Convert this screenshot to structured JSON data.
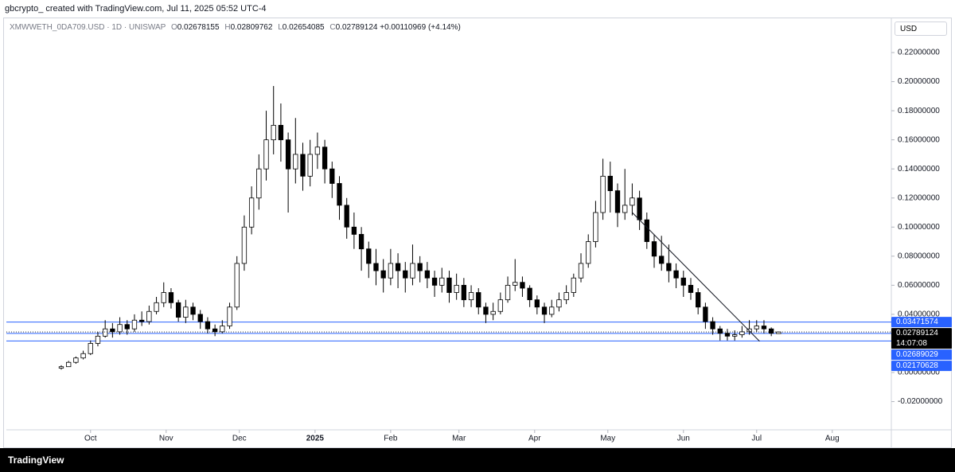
{
  "header": {
    "caption": "gbcrypto_ created with TradingView.com, Jul 11, 2025 05:52 UTC-4",
    "symbol": "XMWWETH_0DA709.USD · 1D · UNISWAP",
    "ohlc": [
      {
        "label": "O",
        "value": "0.02678155"
      },
      {
        "label": "H",
        "value": "0.02809762"
      },
      {
        "label": "L",
        "value": "0.02654085"
      },
      {
        "label": "C",
        "value": "0.02789124"
      }
    ],
    "change": "+0.00110969 (+4.14%)",
    "currency": "USD"
  },
  "footer": {
    "brand": "TradingView"
  },
  "chart_data": {
    "type": "candlestick",
    "up_color": "#ffffff",
    "down_color": "#000000",
    "wick_color": "#000000",
    "level_color": "#2962ff",
    "x": [
      0,
      1,
      2,
      3,
      4,
      5,
      6,
      7,
      8,
      9,
      10,
      11,
      12,
      13,
      14,
      15,
      16,
      17,
      18,
      19,
      20,
      21,
      22,
      23,
      24,
      25,
      26,
      27,
      28,
      29,
      30,
      31,
      32,
      33,
      34,
      35,
      36,
      37,
      38,
      39,
      40,
      41,
      42,
      43,
      44,
      45,
      46,
      47,
      48,
      49,
      50,
      51,
      52,
      53,
      54,
      55,
      56,
      57,
      58,
      59,
      60,
      61,
      62,
      63,
      64,
      65,
      66,
      67,
      68,
      69,
      70,
      71,
      72,
      73,
      74,
      75,
      76,
      77,
      78,
      79,
      80,
      81,
      82,
      83,
      84,
      85,
      86,
      87,
      88,
      89,
      90,
      91,
      92,
      93,
      94,
      95,
      96,
      97,
      98
    ],
    "open": [
      0.003,
      0.004,
      0.007,
      0.01,
      0.013,
      0.02,
      0.025,
      0.03,
      0.028,
      0.033,
      0.03,
      0.036,
      0.035,
      0.042,
      0.048,
      0.055,
      0.048,
      0.038,
      0.045,
      0.04,
      0.035,
      0.03,
      0.028,
      0.032,
      0.045,
      0.075,
      0.1,
      0.12,
      0.14,
      0.16,
      0.17,
      0.16,
      0.14,
      0.15,
      0.135,
      0.15,
      0.155,
      0.14,
      0.13,
      0.115,
      0.1,
      0.095,
      0.085,
      0.075,
      0.07,
      0.065,
      0.075,
      0.07,
      0.065,
      0.075,
      0.07,
      0.065,
      0.06,
      0.065,
      0.055,
      0.06,
      0.05,
      0.055,
      0.045,
      0.04,
      0.042,
      0.05,
      0.06,
      0.062,
      0.058,
      0.05,
      0.045,
      0.04,
      0.045,
      0.05,
      0.055,
      0.065,
      0.075,
      0.09,
      0.11,
      0.135,
      0.125,
      0.11,
      0.115,
      0.12,
      0.105,
      0.09,
      0.08,
      0.075,
      0.07,
      0.065,
      0.06,
      0.055,
      0.045,
      0.035,
      0.03,
      0.027,
      0.025,
      0.026,
      0.028,
      0.03,
      0.032,
      0.03,
      0.02678155
    ],
    "high": [
      0.005,
      0.008,
      0.011,
      0.015,
      0.022,
      0.028,
      0.036,
      0.034,
      0.038,
      0.036,
      0.04,
      0.042,
      0.046,
      0.052,
      0.062,
      0.058,
      0.05,
      0.05,
      0.048,
      0.043,
      0.038,
      0.033,
      0.036,
      0.048,
      0.08,
      0.108,
      0.128,
      0.15,
      0.18,
      0.197,
      0.185,
      0.165,
      0.175,
      0.158,
      0.16,
      0.165,
      0.16,
      0.145,
      0.135,
      0.12,
      0.11,
      0.1,
      0.09,
      0.085,
      0.078,
      0.085,
      0.082,
      0.076,
      0.088,
      0.08,
      0.076,
      0.07,
      0.072,
      0.07,
      0.068,
      0.065,
      0.06,
      0.058,
      0.048,
      0.048,
      0.055,
      0.066,
      0.078,
      0.066,
      0.06,
      0.053,
      0.048,
      0.05,
      0.055,
      0.06,
      0.068,
      0.082,
      0.095,
      0.118,
      0.147,
      0.145,
      0.13,
      0.14,
      0.13,
      0.125,
      0.11,
      0.095,
      0.094,
      0.088,
      0.075,
      0.07,
      0.065,
      0.058,
      0.048,
      0.038,
      0.032,
      0.03,
      0.029,
      0.032,
      0.036,
      0.036,
      0.036,
      0.031,
      0.02809762
    ],
    "low": [
      0.002,
      0.004,
      0.006,
      0.009,
      0.012,
      0.018,
      0.024,
      0.024,
      0.026,
      0.026,
      0.028,
      0.032,
      0.033,
      0.04,
      0.045,
      0.044,
      0.035,
      0.034,
      0.036,
      0.03,
      0.027,
      0.025,
      0.027,
      0.03,
      0.043,
      0.07,
      0.095,
      0.112,
      0.132,
      0.15,
      0.145,
      0.11,
      0.13,
      0.125,
      0.128,
      0.14,
      0.13,
      0.12,
      0.105,
      0.092,
      0.085,
      0.07,
      0.065,
      0.06,
      0.055,
      0.06,
      0.058,
      0.055,
      0.06,
      0.062,
      0.058,
      0.052,
      0.055,
      0.048,
      0.05,
      0.045,
      0.045,
      0.04,
      0.034,
      0.036,
      0.04,
      0.048,
      0.056,
      0.052,
      0.045,
      0.04,
      0.034,
      0.038,
      0.042,
      0.047,
      0.052,
      0.062,
      0.072,
      0.086,
      0.105,
      0.11,
      0.1,
      0.105,
      0.108,
      0.098,
      0.085,
      0.072,
      0.07,
      0.062,
      0.058,
      0.052,
      0.05,
      0.04,
      0.03,
      0.026,
      0.022,
      0.022,
      0.022,
      0.024,
      0.026,
      0.028,
      0.027,
      0.025,
      0.02654085
    ],
    "close": [
      0.004,
      0.007,
      0.01,
      0.013,
      0.02,
      0.025,
      0.03,
      0.028,
      0.033,
      0.03,
      0.036,
      0.035,
      0.042,
      0.048,
      0.055,
      0.048,
      0.038,
      0.045,
      0.04,
      0.035,
      0.03,
      0.028,
      0.032,
      0.045,
      0.075,
      0.1,
      0.12,
      0.14,
      0.16,
      0.17,
      0.16,
      0.14,
      0.15,
      0.135,
      0.15,
      0.155,
      0.14,
      0.13,
      0.115,
      0.1,
      0.095,
      0.085,
      0.075,
      0.07,
      0.065,
      0.075,
      0.07,
      0.065,
      0.075,
      0.07,
      0.065,
      0.06,
      0.065,
      0.055,
      0.06,
      0.05,
      0.055,
      0.045,
      0.04,
      0.042,
      0.05,
      0.06,
      0.062,
      0.058,
      0.05,
      0.045,
      0.04,
      0.045,
      0.05,
      0.055,
      0.065,
      0.075,
      0.09,
      0.11,
      0.135,
      0.125,
      0.11,
      0.115,
      0.12,
      0.105,
      0.09,
      0.08,
      0.075,
      0.07,
      0.065,
      0.06,
      0.055,
      0.045,
      0.035,
      0.03,
      0.027,
      0.025,
      0.026,
      0.028,
      0.03,
      0.032,
      0.03,
      0.027,
      0.02789124
    ],
    "xlim": [
      -7.5,
      113.4
    ],
    "xticks": [
      {
        "value": 4,
        "label": "Oct"
      },
      {
        "value": 14.33,
        "label": "Nov"
      },
      {
        "value": 24.33,
        "label": "Dec"
      },
      {
        "value": 34.67,
        "label": "2025"
      },
      {
        "value": 45,
        "label": "Feb"
      },
      {
        "value": 54.33,
        "label": "Mar"
      },
      {
        "value": 64.67,
        "label": "Apr"
      },
      {
        "value": 74.67,
        "label": "May"
      },
      {
        "value": 85,
        "label": "Jun"
      },
      {
        "value": 95,
        "label": "Jul"
      },
      {
        "value": 105.33,
        "label": "Aug"
      }
    ],
    "ylim": [
      -0.0394,
      0.2441
    ],
    "yticks": [
      {
        "value": -0.02,
        "label": "-0.02000000"
      },
      {
        "value": 0,
        "label": "0.00000000"
      },
      {
        "value": 0.02,
        "label": "0.02000000"
      },
      {
        "value": 0.04,
        "label": "0.04000000"
      },
      {
        "value": 0.06,
        "label": "0.06000000"
      },
      {
        "value": 0.08,
        "label": "0.08000000"
      },
      {
        "value": 0.1,
        "label": "0.10000000"
      },
      {
        "value": 0.12,
        "label": "0.12000000"
      },
      {
        "value": 0.14,
        "label": "0.14000000"
      },
      {
        "value": 0.16,
        "label": "0.16000000"
      },
      {
        "value": 0.18,
        "label": "0.18000000"
      },
      {
        "value": 0.2,
        "label": "0.20000000"
      },
      {
        "value": 0.22,
        "label": "0.22000000"
      }
    ],
    "levels": [
      0.03471574,
      0.02689029,
      0.02170628
    ],
    "last_price": 0.02789124,
    "countdown": "14:07:08",
    "trendline": {
      "x": [
        78,
        95.4
      ],
      "y": [
        0.11,
        0.0215
      ]
    }
  }
}
